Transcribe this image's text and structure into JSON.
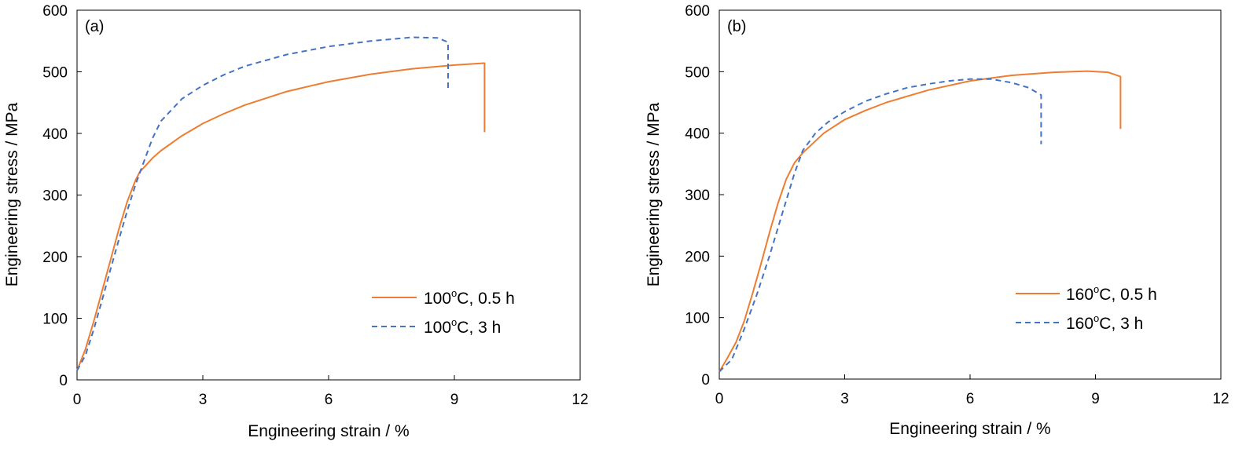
{
  "panels": [
    {
      "id": "a",
      "panel_label": "(a)",
      "legend": [
        {
          "line": "solid",
          "temp": "100",
          "unit": "C",
          "duration": ", 0.5 h"
        },
        {
          "line": "dashed",
          "temp": "100",
          "unit": "C",
          "duration": ", 3 h"
        }
      ]
    },
    {
      "id": "b",
      "panel_label": "(b)",
      "legend": [
        {
          "line": "solid",
          "temp": "160",
          "unit": "C",
          "duration": ", 0.5 h"
        },
        {
          "line": "dashed",
          "temp": "160",
          "unit": "C",
          "duration": ", 3 h"
        }
      ]
    }
  ],
  "chart_data": [
    {
      "type": "line",
      "panel": "(a)",
      "xlabel": "Engineering strain / %",
      "ylabel": "Engineering stress / MPa",
      "xlim": [
        0,
        12
      ],
      "ylim": [
        0,
        600
      ],
      "xticks": [
        "0",
        "3",
        "6",
        "9",
        "12"
      ],
      "yticks": [
        "0",
        "100",
        "200",
        "300",
        "400",
        "500",
        "600"
      ],
      "grid": false,
      "legend_position": "right-middle",
      "series": [
        {
          "name": "100°C, 0.5 h",
          "color": "#ED7D31",
          "style": "solid",
          "x": [
            0,
            0.2,
            0.4,
            0.6,
            0.8,
            1.0,
            1.2,
            1.4,
            1.5,
            1.6,
            1.8,
            2.0,
            2.5,
            3.0,
            3.5,
            4.0,
            5.0,
            6.0,
            7.0,
            8.0,
            9.0,
            9.7,
            9.72,
            9.72
          ],
          "y": [
            15,
            50,
            95,
            145,
            195,
            245,
            290,
            325,
            338,
            345,
            360,
            372,
            396,
            416,
            432,
            446,
            468,
            484,
            496,
            505,
            511,
            514,
            514,
            402
          ]
        },
        {
          "name": "100°C, 3 h",
          "color": "#4472C4",
          "style": "dashed",
          "x": [
            0,
            0.2,
            0.4,
            0.6,
            0.8,
            1.0,
            1.2,
            1.4,
            1.6,
            1.8,
            2.0,
            2.5,
            3.0,
            3.5,
            4.0,
            5.0,
            6.0,
            7.0,
            8.0,
            8.6,
            8.85,
            8.85
          ],
          "y": [
            15,
            40,
            82,
            130,
            180,
            228,
            275,
            318,
            355,
            392,
            420,
            456,
            478,
            495,
            509,
            528,
            541,
            550,
            556,
            555,
            548,
            472
          ]
        }
      ]
    },
    {
      "type": "line",
      "panel": "(b)",
      "xlabel": "Engineering strain / %",
      "ylabel": "Engineering stress / MPa",
      "xlim": [
        0,
        12
      ],
      "ylim": [
        0,
        600
      ],
      "xticks": [
        "0",
        "3",
        "6",
        "9",
        "12"
      ],
      "yticks": [
        "0",
        "100",
        "200",
        "300",
        "400",
        "500",
        "600"
      ],
      "grid": false,
      "legend_position": "right-middle",
      "series": [
        {
          "name": "160°C, 0.5 h",
          "color": "#ED7D31",
          "style": "solid",
          "x": [
            0,
            0.2,
            0.4,
            0.6,
            0.8,
            1.0,
            1.2,
            1.4,
            1.6,
            1.8,
            2.0,
            2.5,
            3.0,
            3.5,
            4.0,
            5.0,
            6.0,
            7.0,
            8.0,
            8.8,
            9.3,
            9.6,
            9.6
          ],
          "y": [
            12,
            35,
            60,
            95,
            140,
            188,
            238,
            285,
            325,
            352,
            368,
            400,
            422,
            437,
            450,
            470,
            485,
            494,
            499,
            501,
            499,
            492,
            407
          ]
        },
        {
          "name": "160°C, 3 h",
          "color": "#4472C4",
          "style": "dashed",
          "x": [
            0,
            0.3,
            0.6,
            0.9,
            1.2,
            1.5,
            1.8,
            2.0,
            2.3,
            2.6,
            3.0,
            3.5,
            4.0,
            4.5,
            5.0,
            5.5,
            6.0,
            6.5,
            7.0,
            7.4,
            7.7,
            7.7
          ],
          "y": [
            12,
            32,
            82,
            138,
            200,
            268,
            335,
            372,
            400,
            418,
            435,
            452,
            464,
            474,
            480,
            485,
            488,
            488,
            482,
            474,
            462,
            382
          ]
        }
      ]
    }
  ]
}
